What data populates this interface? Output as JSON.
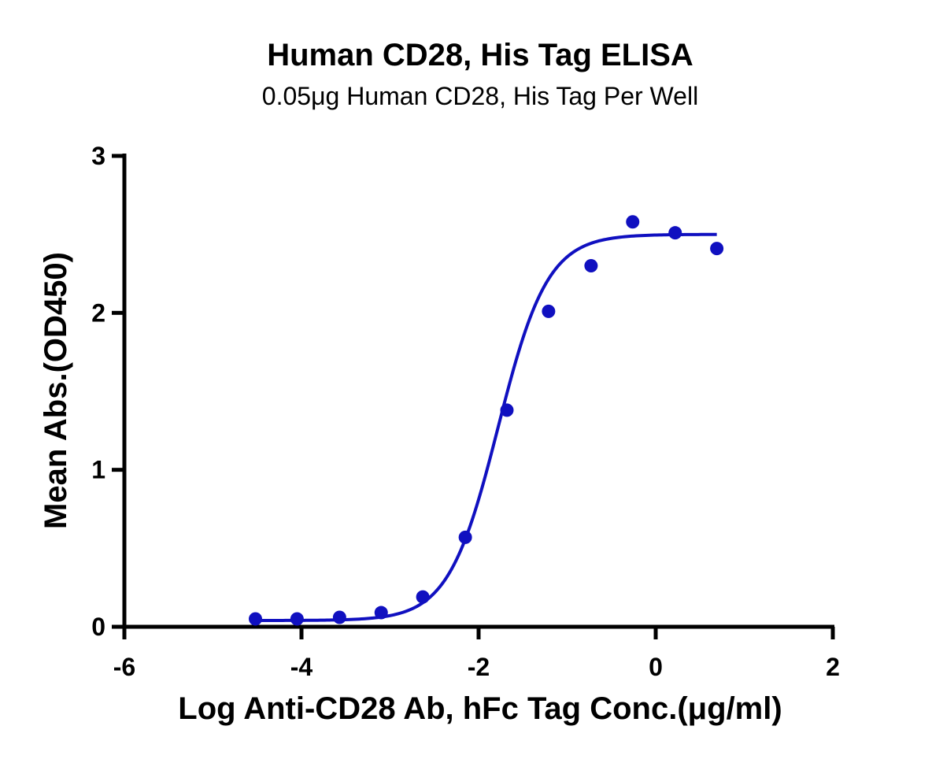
{
  "chart_data": {
    "type": "scatter",
    "title": "Human CD28, His Tag ELISA",
    "subtitle": "0.05μg Human CD28, His Tag Per Well",
    "xlabel": "Log Anti-CD28 Ab, hFc Tag Conc.(μg/ml)",
    "ylabel": "Mean Abs.(OD450)",
    "xlim": [
      -6,
      2
    ],
    "ylim": [
      0,
      3
    ],
    "x_ticks": [
      -6,
      -4,
      -2,
      0,
      2
    ],
    "x_tick_labels": [
      "-6",
      "-4",
      "-2",
      "0",
      "2"
    ],
    "y_ticks": [
      0,
      1,
      2,
      3
    ],
    "y_tick_labels": [
      "0",
      "1",
      "2",
      "3"
    ],
    "grid": false,
    "colors": {
      "series": "#1010c0"
    },
    "series": [
      {
        "marker": "circle",
        "x": [
          -4.52,
          -4.05,
          -3.57,
          -3.1,
          -2.63,
          -2.15,
          -1.68,
          -1.21,
          -0.73,
          -0.26,
          0.22,
          0.69
        ],
        "y": [
          0.05,
          0.05,
          0.06,
          0.09,
          0.19,
          0.57,
          1.38,
          2.01,
          2.3,
          2.58,
          2.51,
          2.41
        ]
      }
    ],
    "fit_curve": {
      "model": "4PL",
      "bottom": 0.04,
      "top": 2.5,
      "log_ec50": -1.78,
      "hill_slope": 1.55,
      "x_range": [
        -4.52,
        0.69
      ]
    }
  }
}
